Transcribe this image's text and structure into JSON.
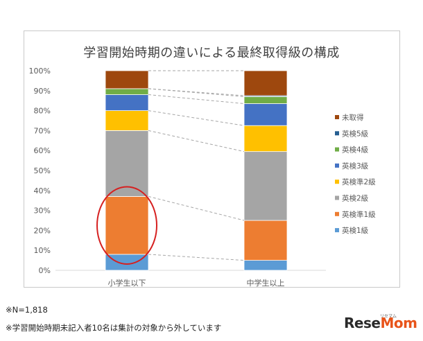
{
  "chart_data": {
    "type": "bar",
    "stacked": true,
    "percent": true,
    "title": "学習開始時期の違いによる最終取得級の構成",
    "categories": [
      "小学生以下",
      "中学生以上"
    ],
    "y_ticks": [
      "0%",
      "10%",
      "20%",
      "30%",
      "40%",
      "50%",
      "60%",
      "70%",
      "80%",
      "90%",
      "100%"
    ],
    "ylim": [
      0,
      100
    ],
    "series": [
      {
        "name": "英検1級",
        "color": "#5b9bd5",
        "values": [
          8,
          5
        ]
      },
      {
        "name": "英検準1級",
        "color": "#ed7d31",
        "values": [
          29,
          20
        ]
      },
      {
        "name": "英検2級",
        "color": "#a5a5a5",
        "values": [
          33,
          34.5
        ]
      },
      {
        "name": "英検準2級",
        "color": "#ffc000",
        "values": [
          10,
          13
        ]
      },
      {
        "name": "英検3級",
        "color": "#4472c4",
        "values": [
          8,
          11
        ]
      },
      {
        "name": "英検4級",
        "color": "#70ad47",
        "values": [
          3,
          3.5
        ]
      },
      {
        "name": "英検5級",
        "color": "#255e91",
        "values": [
          0,
          0.5
        ]
      },
      {
        "name": "未取得",
        "color": "#9e480e",
        "values": [
          9,
          12.5
        ]
      }
    ],
    "legend_order": [
      "未取得",
      "英検5級",
      "英検4級",
      "英検3級",
      "英検準2級",
      "英検2級",
      "英検準1級",
      "英検1級"
    ],
    "legend_position": "right",
    "connector_lines": true,
    "highlight": {
      "category": "小学生以下",
      "series": "英検準1級",
      "shape": "ellipse",
      "color": "#d62020"
    }
  },
  "footnotes": [
    "※N=1,818",
    "※学習開始時期未記入者10名は集計の対象から外しています"
  ],
  "brand": {
    "name_a": "Rese",
    "name_b": "Mom",
    "tag": "リセマム"
  }
}
